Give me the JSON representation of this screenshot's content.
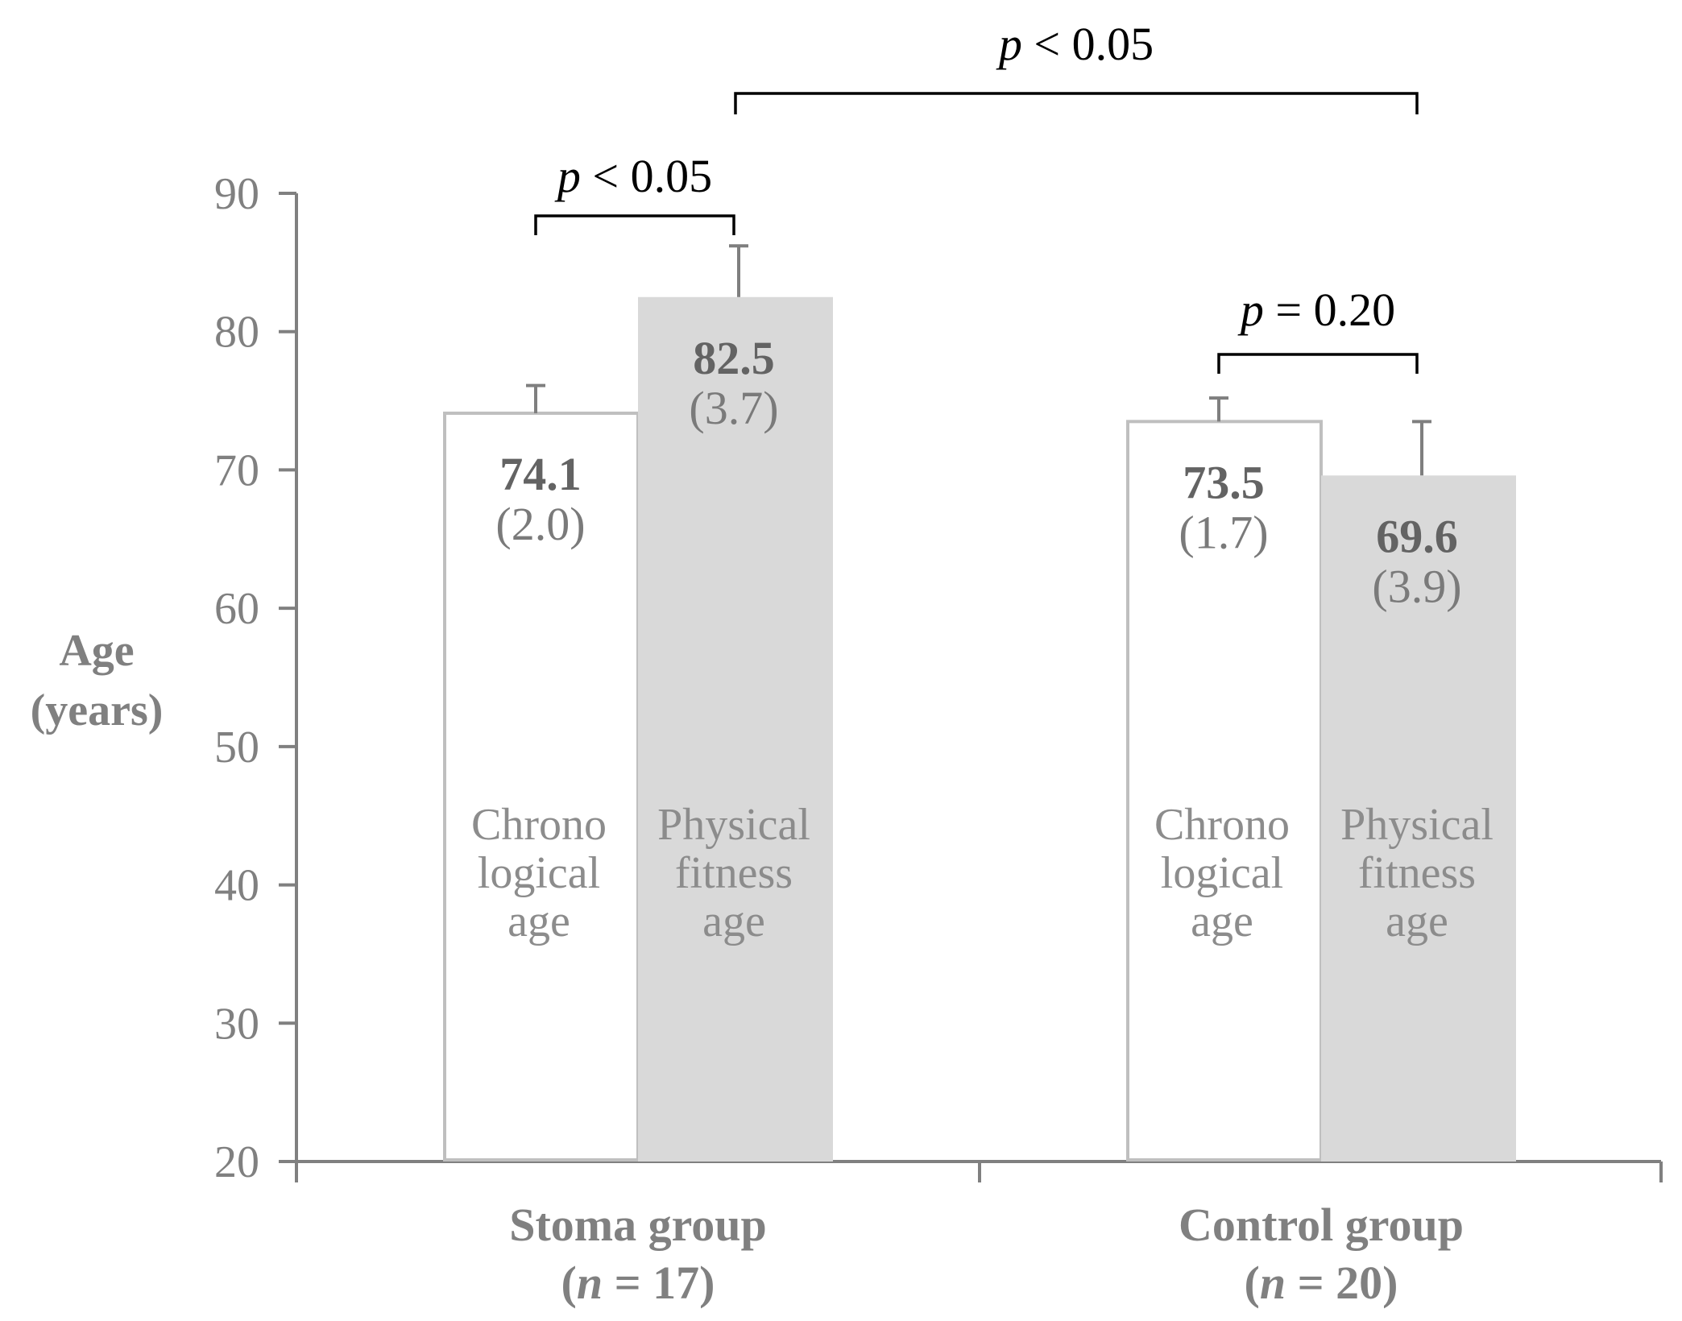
{
  "chart_data": {
    "type": "bar",
    "title": "",
    "xlabel": "",
    "ylabel": [
      "Age",
      "(years)"
    ],
    "ylim": [
      20,
      90
    ],
    "yticks": [
      20,
      30,
      40,
      50,
      60,
      70,
      80,
      90
    ],
    "grid": false,
    "categories": [
      {
        "name": "Stoma group",
        "n_var": "n",
        "n_text": " = 17"
      },
      {
        "name": "Control group",
        "n_var": "n",
        "n_text": " = 20"
      }
    ],
    "series": [
      {
        "name": "Chronological age",
        "label_lines": [
          "Chrono",
          "logical",
          "age"
        ],
        "style": "outline",
        "values": [
          74.1,
          73.5
        ],
        "sd": [
          2.0,
          1.7
        ],
        "value_text": [
          "74.1",
          "73.5"
        ],
        "sd_text": [
          "(2.0)",
          "(1.7)"
        ]
      },
      {
        "name": "Physical fitness age",
        "label_lines": [
          "Physical",
          "fitness",
          "age"
        ],
        "style": "filled",
        "values": [
          82.5,
          69.6
        ],
        "sd": [
          3.7,
          3.9
        ],
        "value_text": [
          "82.5",
          "69.6"
        ],
        "sd_text": [
          "(3.7)",
          "(3.9)"
        ]
      }
    ],
    "comparisons": [
      {
        "from": [
          0,
          0
        ],
        "to": [
          0,
          1
        ],
        "p_var": "p",
        "p_text": " < 0.05"
      },
      {
        "from": [
          1,
          0
        ],
        "to": [
          1,
          1
        ],
        "p_var": "p",
        "p_text": " = 0.20"
      },
      {
        "from": [
          0,
          1
        ],
        "to": [
          1,
          1
        ],
        "p_var": "p",
        "p_text": " < 0.05"
      }
    ]
  },
  "colors": {
    "axis": "#808080",
    "chrono_fill": "#ffffff",
    "chrono_edge": "#bfbfbf",
    "fitness_fill": "#d9d9d9",
    "error_bar": "#7f7f7f",
    "bracket": "#000000"
  }
}
